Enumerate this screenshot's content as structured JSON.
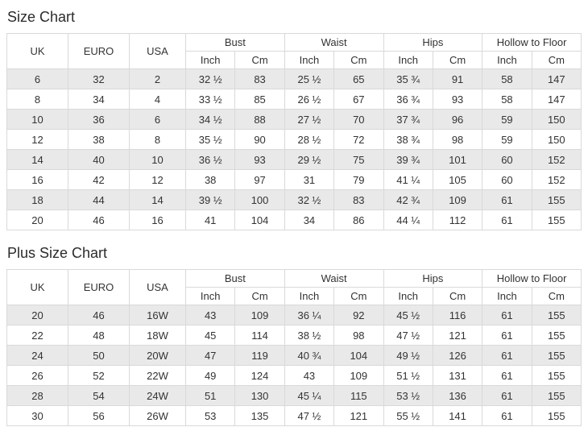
{
  "size_chart": {
    "title": "Size Chart",
    "headers": {
      "uk": "UK",
      "euro": "EURO",
      "usa": "USA",
      "groups": [
        "Bust",
        "Waist",
        "Hips",
        "Hollow to Floor"
      ],
      "sub_inch": "Inch",
      "sub_cm": "Cm"
    },
    "rows": [
      [
        "6",
        "32",
        "2",
        "32 ½",
        "83",
        "25 ½",
        "65",
        "35 ¾",
        "91",
        "58",
        "147"
      ],
      [
        "8",
        "34",
        "4",
        "33 ½",
        "85",
        "26 ½",
        "67",
        "36 ¾",
        "93",
        "58",
        "147"
      ],
      [
        "10",
        "36",
        "6",
        "34 ½",
        "88",
        "27 ½",
        "70",
        "37 ¾",
        "96",
        "59",
        "150"
      ],
      [
        "12",
        "38",
        "8",
        "35 ½",
        "90",
        "28 ½",
        "72",
        "38 ¾",
        "98",
        "59",
        "150"
      ],
      [
        "14",
        "40",
        "10",
        "36 ½",
        "93",
        "29 ½",
        "75",
        "39 ¾",
        "101",
        "60",
        "152"
      ],
      [
        "16",
        "42",
        "12",
        "38",
        "97",
        "31",
        "79",
        "41 ¼",
        "105",
        "60",
        "152"
      ],
      [
        "18",
        "44",
        "14",
        "39 ½",
        "100",
        "32 ½",
        "83",
        "42 ¾",
        "109",
        "61",
        "155"
      ],
      [
        "20",
        "46",
        "16",
        "41",
        "104",
        "34",
        "86",
        "44 ¼",
        "112",
        "61",
        "155"
      ]
    ]
  },
  "plus_size_chart": {
    "title": "Plus Size Chart",
    "headers": {
      "uk": "UK",
      "euro": "EURO",
      "usa": "USA",
      "groups": [
        "Bust",
        "Waist",
        "Hips",
        "Hollow to Floor"
      ],
      "sub_inch": "Inch",
      "sub_cm": "Cm"
    },
    "rows": [
      [
        "20",
        "46",
        "16W",
        "43",
        "109",
        "36 ¼",
        "92",
        "45 ½",
        "116",
        "61",
        "155"
      ],
      [
        "22",
        "48",
        "18W",
        "45",
        "114",
        "38 ½",
        "98",
        "47 ½",
        "121",
        "61",
        "155"
      ],
      [
        "24",
        "50",
        "20W",
        "47",
        "119",
        "40 ¾",
        "104",
        "49 ½",
        "126",
        "61",
        "155"
      ],
      [
        "26",
        "52",
        "22W",
        "49",
        "124",
        "43",
        "109",
        "51 ½",
        "131",
        "61",
        "155"
      ],
      [
        "28",
        "54",
        "24W",
        "51",
        "130",
        "45 ¼",
        "115",
        "53 ½",
        "136",
        "61",
        "155"
      ],
      [
        "30",
        "56",
        "26W",
        "53",
        "135",
        "47 ½",
        "121",
        "55 ½",
        "141",
        "61",
        "155"
      ]
    ]
  }
}
